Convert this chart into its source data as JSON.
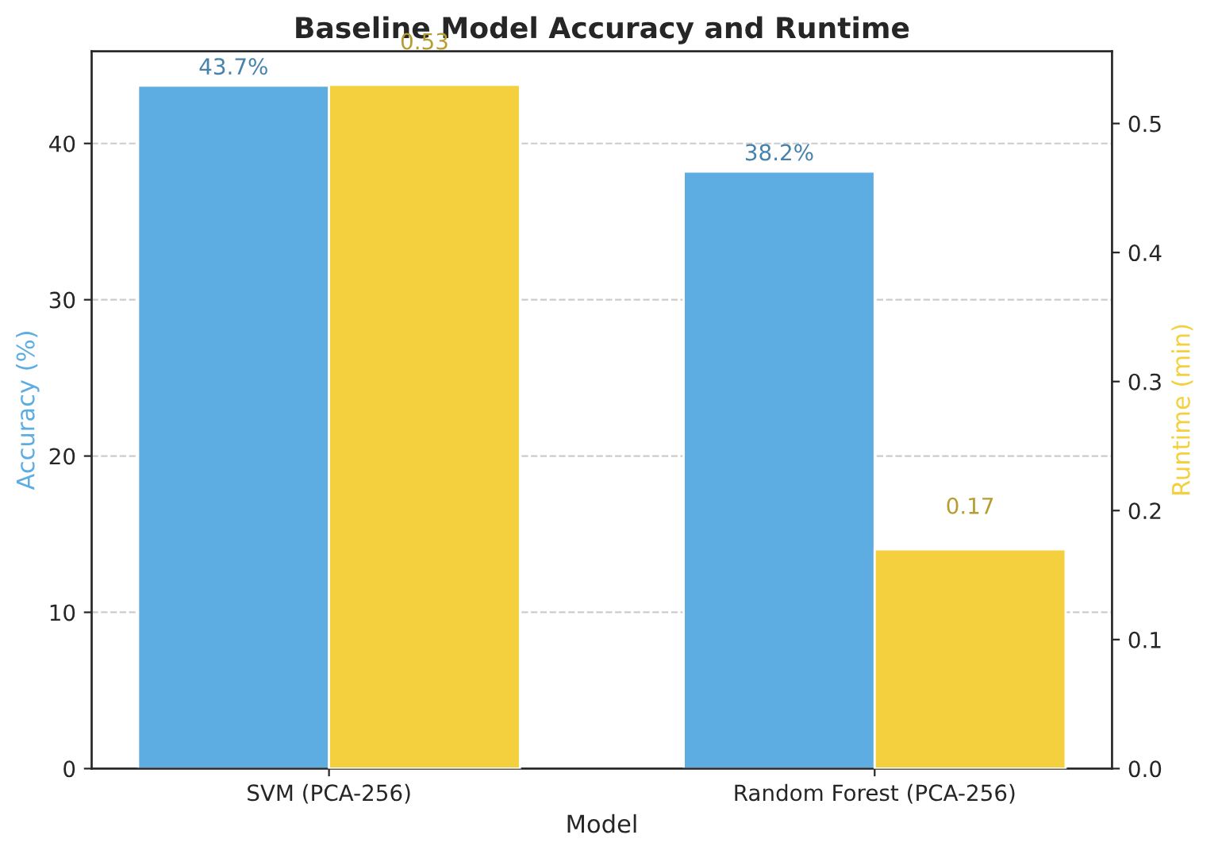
{
  "chart_data": {
    "type": "bar",
    "title": "Baseline Model Accuracy and Runtime",
    "xlabel": "Model",
    "ylabel": "Accuracy (%)",
    "y2label": "Runtime (min)",
    "categories": [
      "SVM (PCA-256)",
      "Random Forest (PCA-256)"
    ],
    "series": [
      {
        "color": "#5dade2",
        "values": [
          43.7,
          38.2
        ],
        "value_labels": [
          "43.7%",
          "38.2%"
        ]
      },
      {
        "color": "#f4d03f",
        "values": [
          0.53,
          0.17
        ],
        "value_labels": [
          "0.53",
          "0.17"
        ],
        "axis": "y2"
      }
    ],
    "ylim": [
      0,
      45.9
    ],
    "yticks": [
      0,
      10,
      20,
      30,
      40
    ],
    "y2lim": [
      0,
      0.556
    ],
    "y2ticks": [
      {
        "value": 0,
        "label": "0.0"
      },
      0.1,
      0.2,
      0.3,
      0.4,
      0.5
    ],
    "grid": "y",
    "line_style": "dashed"
  }
}
